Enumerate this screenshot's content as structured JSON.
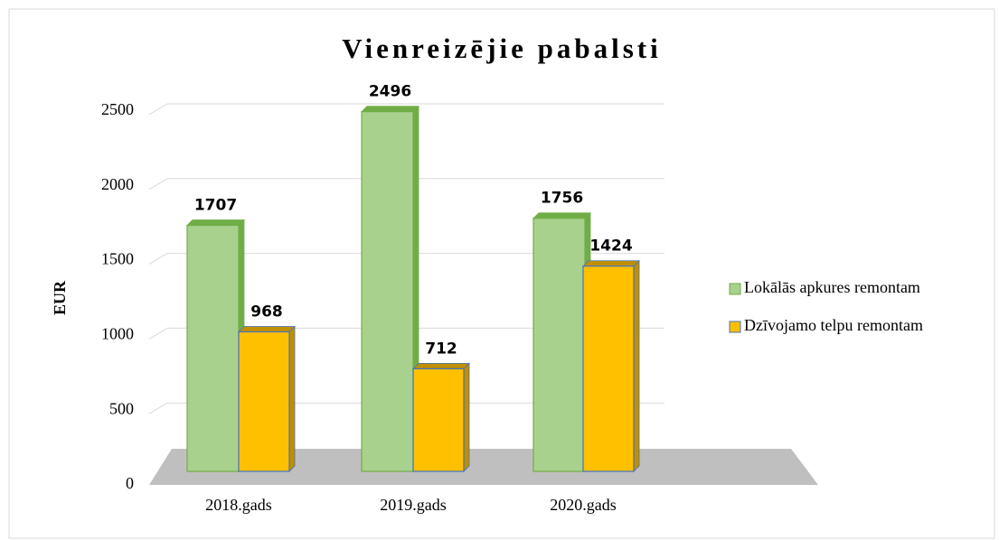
{
  "chart_data": {
    "type": "bar3d",
    "title": "Vienreizējie pabalsti",
    "y_label": "EUR",
    "categories": [
      "2018.gads",
      "2019.gads",
      "2020.gads"
    ],
    "series": [
      {
        "name": "Lokālās apkures remontam",
        "color": "#a9d18e",
        "values": [
          1707,
          2496,
          1756
        ]
      },
      {
        "name": "Dzīvojamo telpu remontam",
        "color": "#ffc000",
        "values": [
          968,
          712,
          1424
        ]
      }
    ],
    "ylim": [
      0,
      2500
    ],
    "yticks": [
      0,
      500,
      1000,
      1500,
      2000,
      2500
    ],
    "grid": true,
    "legend": "right"
  }
}
